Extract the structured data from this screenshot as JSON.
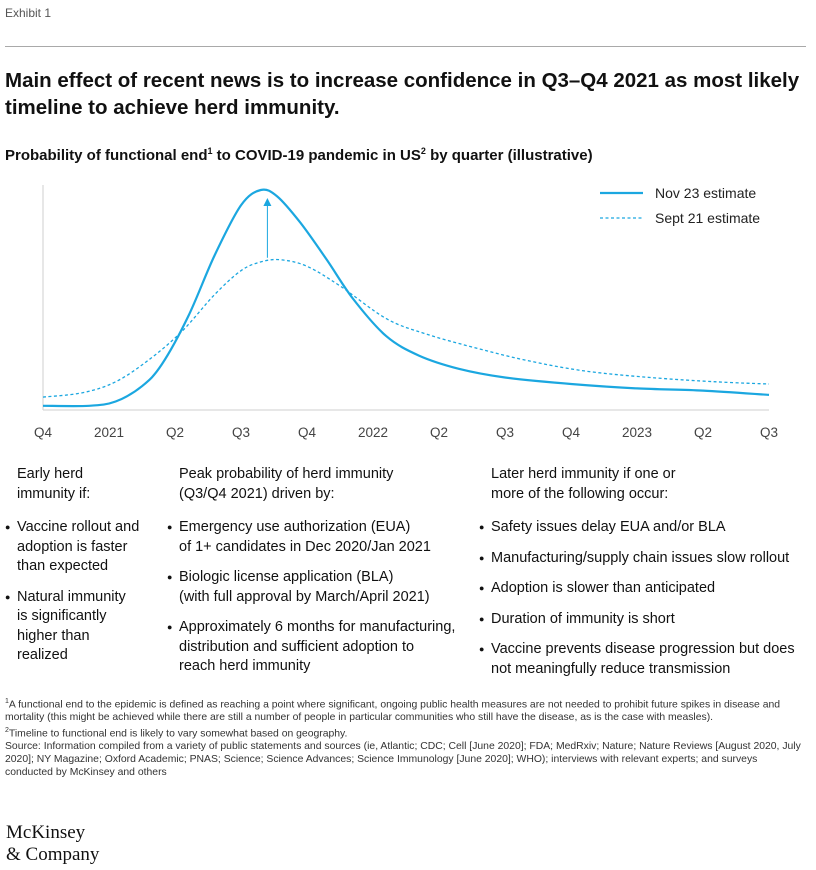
{
  "exhibit_label": "Exhibit 1",
  "headline": "Main effect of recent news is to increase confidence in Q3–Q4 2021 as most likely timeline to achieve herd immunity.",
  "subtitle": {
    "part1": "Probability of functional end",
    "sup1": "1",
    "part2": " to COVID-19 pandemic in US",
    "sup2": "2",
    "part3": " by quarter (illustrative)"
  },
  "chart_data": {
    "type": "line",
    "x": [
      "Q4",
      "2021",
      "Q2",
      "Q3",
      "Q4",
      "2022",
      "Q2",
      "Q3",
      "Q4",
      "2023",
      "Q2",
      "Q3"
    ],
    "ylim": [
      0,
      100
    ],
    "series": [
      {
        "name": "Nov 23 estimate",
        "style": "solid",
        "color": "#1ba7e0",
        "points": [
          [
            0,
            1
          ],
          [
            0.7,
            1
          ],
          [
            1.1,
            3
          ],
          [
            1.5,
            10
          ],
          [
            1.8,
            20
          ],
          [
            2.2,
            42
          ],
          [
            2.6,
            70
          ],
          [
            3.0,
            93
          ],
          [
            3.3,
            100
          ],
          [
            3.55,
            97
          ],
          [
            3.9,
            85
          ],
          [
            4.3,
            68
          ],
          [
            4.7,
            50
          ],
          [
            5.2,
            33
          ],
          [
            5.7,
            24
          ],
          [
            6.3,
            18
          ],
          [
            7,
            14
          ],
          [
            8,
            11
          ],
          [
            9,
            9
          ],
          [
            10,
            8
          ],
          [
            11,
            6
          ]
        ]
      },
      {
        "name": "Sept 21 estimate",
        "style": "dashed",
        "color": "#1ba7e0",
        "points": [
          [
            0,
            5
          ],
          [
            0.6,
            7
          ],
          [
            1.1,
            12
          ],
          [
            1.6,
            22
          ],
          [
            2.1,
            35
          ],
          [
            2.6,
            52
          ],
          [
            3.0,
            63
          ],
          [
            3.3,
            67
          ],
          [
            3.6,
            68
          ],
          [
            4.0,
            65
          ],
          [
            4.5,
            56
          ],
          [
            5.2,
            41
          ],
          [
            5.8,
            34
          ],
          [
            6.5,
            28
          ],
          [
            7.3,
            22
          ],
          [
            8.2,
            17
          ],
          [
            9.2,
            14
          ],
          [
            10.2,
            12
          ],
          [
            11,
            11
          ]
        ]
      }
    ],
    "annotation": "arrow from Sept 21 estimate peak up to Nov 23 estimate peak",
    "legend_position": "top-right"
  },
  "columns": [
    {
      "heading": [
        "Early herd",
        "immunity if:"
      ],
      "bullets": [
        [
          "Vaccine rollout and",
          "adoption is faster",
          "than expected"
        ],
        [
          "Natural immunity",
          "is significantly",
          "higher than",
          "realized"
        ]
      ]
    },
    {
      "heading": [
        "Peak probability of herd immunity",
        "(Q3/Q4 2021) driven by:"
      ],
      "bullets": [
        [
          "Emergency use authorization (EUA)",
          "of 1+ candidates in Dec 2020/Jan 2021"
        ],
        [
          "Biologic license application (BLA)",
          "(with full approval by March/April 2021)"
        ],
        [
          "Approximately 6 months for manufacturing,",
          "distribution and sufficient adoption to",
          "reach herd immunity"
        ]
      ]
    },
    {
      "heading": [
        "Later herd immunity if one or",
        "more of the following occur:"
      ],
      "bullets": [
        [
          "Safety issues delay EUA and/or BLA"
        ],
        [
          "Manufacturing/supply chain issues slow rollout"
        ],
        [
          "Adoption is slower than anticipated"
        ],
        [
          "Duration of immunity is short"
        ],
        [
          "Vaccine prevents disease progression but does",
          "not meaningfully reduce transmission"
        ]
      ]
    }
  ],
  "footnotes": {
    "fn1_mark": "1",
    "fn1": "A functional end to the epidemic is defined as reaching a point where significant, ongoing public health measures are not needed to prohibit future spikes in disease and mortality (this might be achieved while there are still a number of people in particular communities who still have the disease, as is the case with measles).",
    "fn2_mark": "2",
    "fn2": "Timeline to functional end is likely to vary somewhat based on geography.",
    "source": "Source: Information compiled from a variety of public statements and sources (ie, Atlantic; CDC; Cell [June 2020]; FDA; MedRxiv; Nature; Nature Reviews [August 2020, July 2020]; NY Magazine; Oxford Academic; PNAS; Science; Science Advances; Science Immunology [June 2020]; WHO); interviews with relevant experts; and surveys conducted by McKinsey and others"
  },
  "logo": {
    "line1": "McKinsey",
    "line2": "& Company"
  }
}
